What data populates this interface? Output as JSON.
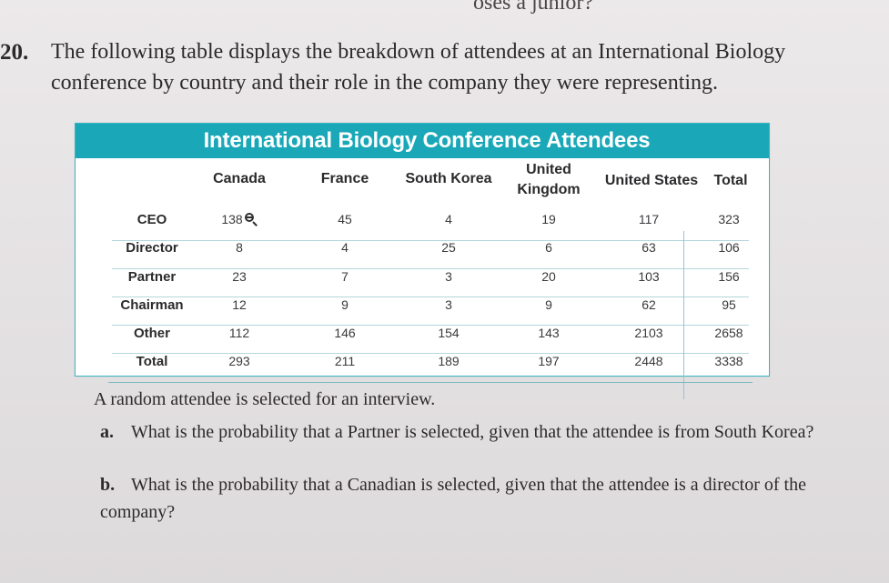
{
  "top_fragment": "oses a junior?",
  "problem": {
    "number": "20.",
    "text": "The following table displays the breakdown of attendees at an International Biology conference by country and their role in the company they were representing."
  },
  "table": {
    "title": "International Biology Conference Attendees",
    "columns": [
      "Canada",
      "France",
      "South Korea",
      "United Kingdom",
      "United States",
      "Total"
    ],
    "rows": [
      {
        "label": "CEO",
        "values": [
          "138",
          "45",
          "4",
          "19",
          "117",
          "323"
        ]
      },
      {
        "label": "Director",
        "values": [
          "8",
          "4",
          "25",
          "6",
          "63",
          "106"
        ]
      },
      {
        "label": "Partner",
        "values": [
          "23",
          "7",
          "3",
          "20",
          "103",
          "156"
        ]
      },
      {
        "label": "Chairman",
        "values": [
          "12",
          "9",
          "3",
          "9",
          "62",
          "95"
        ]
      },
      {
        "label": "Other",
        "values": [
          "112",
          "146",
          "154",
          "143",
          "2103",
          "2658"
        ]
      },
      {
        "label": "Total",
        "values": [
          "293",
          "211",
          "189",
          "197",
          "2448",
          "3338"
        ]
      }
    ],
    "colors": {
      "header_bar": "#1aa8b8",
      "border": "#3bb5c3"
    },
    "zoom_icon": "magnifier-icon"
  },
  "prompt": "A random attendee is selected for an interview.",
  "questions": [
    {
      "letter": "a.",
      "text": "What is the probability that a Partner is selected, given that the attendee is from South Korea?"
    },
    {
      "letter": "b.",
      "text": "What is the probability that a Canadian is selected, given that the attendee is a director of the company?"
    }
  ]
}
